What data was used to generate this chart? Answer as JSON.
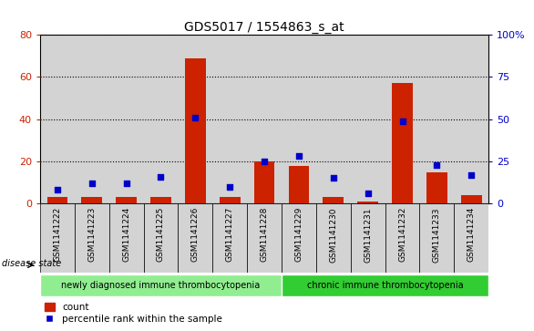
{
  "title": "GDS5017 / 1554863_s_at",
  "samples": [
    "GSM1141222",
    "GSM1141223",
    "GSM1141224",
    "GSM1141225",
    "GSM1141226",
    "GSM1141227",
    "GSM1141228",
    "GSM1141229",
    "GSM1141230",
    "GSM1141231",
    "GSM1141232",
    "GSM1141233",
    "GSM1141234"
  ],
  "counts": [
    3,
    3,
    3,
    3,
    69,
    3,
    20,
    18,
    3,
    1,
    57,
    15,
    4
  ],
  "percentiles": [
    8,
    12,
    12,
    16,
    51,
    10,
    25,
    28,
    15,
    6,
    49,
    23,
    17
  ],
  "groups": [
    {
      "label": "newly diagnosed immune thrombocytopenia",
      "start": 0,
      "end": 7,
      "color": "#90ee90"
    },
    {
      "label": "chronic immune thrombocytopenia",
      "start": 7,
      "end": 13,
      "color": "#32cd32"
    }
  ],
  "disease_state_label": "disease state",
  "left_ylim": [
    0,
    80
  ],
  "right_ylim": [
    0,
    100
  ],
  "left_yticks": [
    0,
    20,
    40,
    60,
    80
  ],
  "right_yticks": [
    0,
    25,
    50,
    75,
    100
  ],
  "right_yticklabels": [
    "0",
    "25",
    "50",
    "75",
    "100%"
  ],
  "bar_color": "#cc2200",
  "dot_color": "#0000cc",
  "col_bg_color": "#d3d3d3",
  "plot_bg": "#ffffff",
  "title_color": "#000000",
  "left_tick_color": "#cc2200",
  "right_tick_color": "#0000cc",
  "legend_count_label": "count",
  "legend_pct_label": "percentile rank within the sample",
  "bar_width": 0.6
}
